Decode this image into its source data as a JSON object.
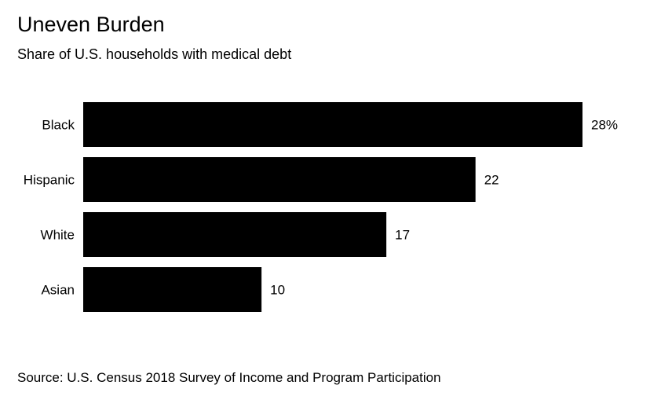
{
  "chart_data": {
    "type": "bar",
    "orientation": "horizontal",
    "title": "Uneven Burden",
    "subtitle": "Share of U.S. households with medical debt",
    "categories": [
      "Black",
      "Hispanic",
      "White",
      "Asian"
    ],
    "values": [
      28,
      22,
      17,
      10
    ],
    "value_labels": [
      "28%",
      "22",
      "17",
      "10"
    ],
    "unit": "%",
    "xlim": [
      0,
      28
    ],
    "grid": false,
    "legend": "none",
    "bar_color": "#000000"
  },
  "footer": {
    "source": "Source: U.S. Census 2018 Survey of Income and Program Participation"
  }
}
